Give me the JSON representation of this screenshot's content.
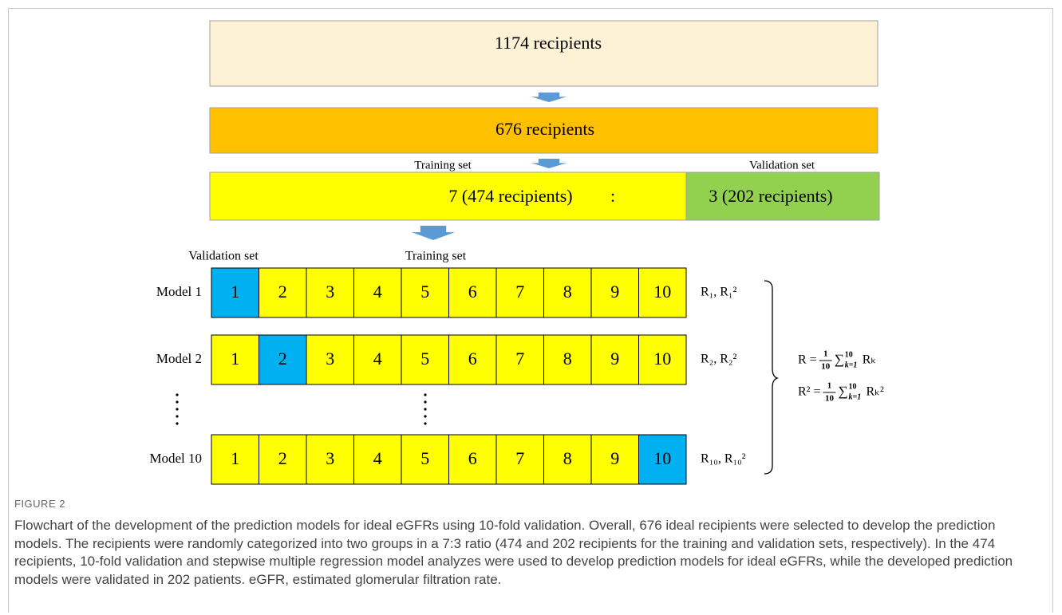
{
  "diagram": {
    "top_box": {
      "text": "1174 recipients",
      "color": "#fdf1d6"
    },
    "second_box": {
      "text": "676 recipients",
      "color": "#ffc000"
    },
    "split": {
      "training_label": "Training set",
      "validation_label": "Validation set",
      "training_text": "7 (474 recipients)",
      "separator": ":",
      "validation_text": "3  (202 recipients)",
      "training_color": "#ffff00",
      "validation_color": "#92d050"
    },
    "fold_header": {
      "validation_label": "Validation set",
      "training_label": "Training set"
    },
    "rows": [
      {
        "label": "Model 1",
        "result": "R₁, R₁²",
        "cells": [
          {
            "text": "1",
            "color": "#00b0f0"
          },
          {
            "text": "2",
            "color": "#ffff00"
          },
          {
            "text": "3",
            "color": "#ffff00"
          },
          {
            "text": "4",
            "color": "#ffff00"
          },
          {
            "text": "5",
            "color": "#ffff00"
          },
          {
            "text": "6",
            "color": "#ffff00"
          },
          {
            "text": "7",
            "color": "#ffff00"
          },
          {
            "text": "8",
            "color": "#ffff00"
          },
          {
            "text": "9",
            "color": "#ffff00"
          },
          {
            "text": "10",
            "color": "#ffff00"
          }
        ]
      },
      {
        "label": "Model 2",
        "result": "R₂, R₂²",
        "cells": [
          {
            "text": "1",
            "color": "#ffff00"
          },
          {
            "text": "2",
            "color": "#00b0f0"
          },
          {
            "text": "3",
            "color": "#ffff00"
          },
          {
            "text": "4",
            "color": "#ffff00"
          },
          {
            "text": "5",
            "color": "#ffff00"
          },
          {
            "text": "6",
            "color": "#ffff00"
          },
          {
            "text": "7",
            "color": "#ffff00"
          },
          {
            "text": "8",
            "color": "#ffff00"
          },
          {
            "text": "9",
            "color": "#ffff00"
          },
          {
            "text": "10",
            "color": "#ffff00"
          }
        ]
      },
      {
        "label": "Model 10",
        "result": "R₁₀, R₁₀²",
        "cells": [
          {
            "text": "1",
            "color": "#ffff00"
          },
          {
            "text": "2",
            "color": "#ffff00"
          },
          {
            "text": "3",
            "color": "#ffff00"
          },
          {
            "text": "4",
            "color": "#ffff00"
          },
          {
            "text": "5",
            "color": "#ffff00"
          },
          {
            "text": "6",
            "color": "#ffff00"
          },
          {
            "text": "7",
            "color": "#ffff00"
          },
          {
            "text": "8",
            "color": "#ffff00"
          },
          {
            "text": "9",
            "color": "#ffff00"
          },
          {
            "text": "10",
            "color": "#00b0f0"
          }
        ]
      }
    ],
    "formulas": [
      {
        "lhs": "R =",
        "num": "1",
        "den": "10",
        "sum": "∑",
        "upper": "10",
        "lower": "k=1",
        "term": "Rₖ"
      },
      {
        "lhs": "R² =",
        "num": "1",
        "den": "10",
        "sum": "∑",
        "upper": "10",
        "lower": "k=1",
        "term": "Rₖ²"
      }
    ],
    "arrow_color": "#5b9bd5"
  },
  "figure_label": "FIGURE 2",
  "caption": "Flowchart of the development of the prediction models for ideal eGFRs using 10-fold validation. Overall, 676 ideal recipients were selected to develop the prediction models. The recipients were randomly categorized into two groups in a 7:3 ratio (474 and 202 recipients for the training and validation sets, respectively). In the 474 recipients, 10-fold validation and stepwise multiple regression model analyzes were used to develop prediction models for ideal eGFRs, while the developed prediction models were validated in 202 patients. eGFR, estimated glomerular filtration rate."
}
